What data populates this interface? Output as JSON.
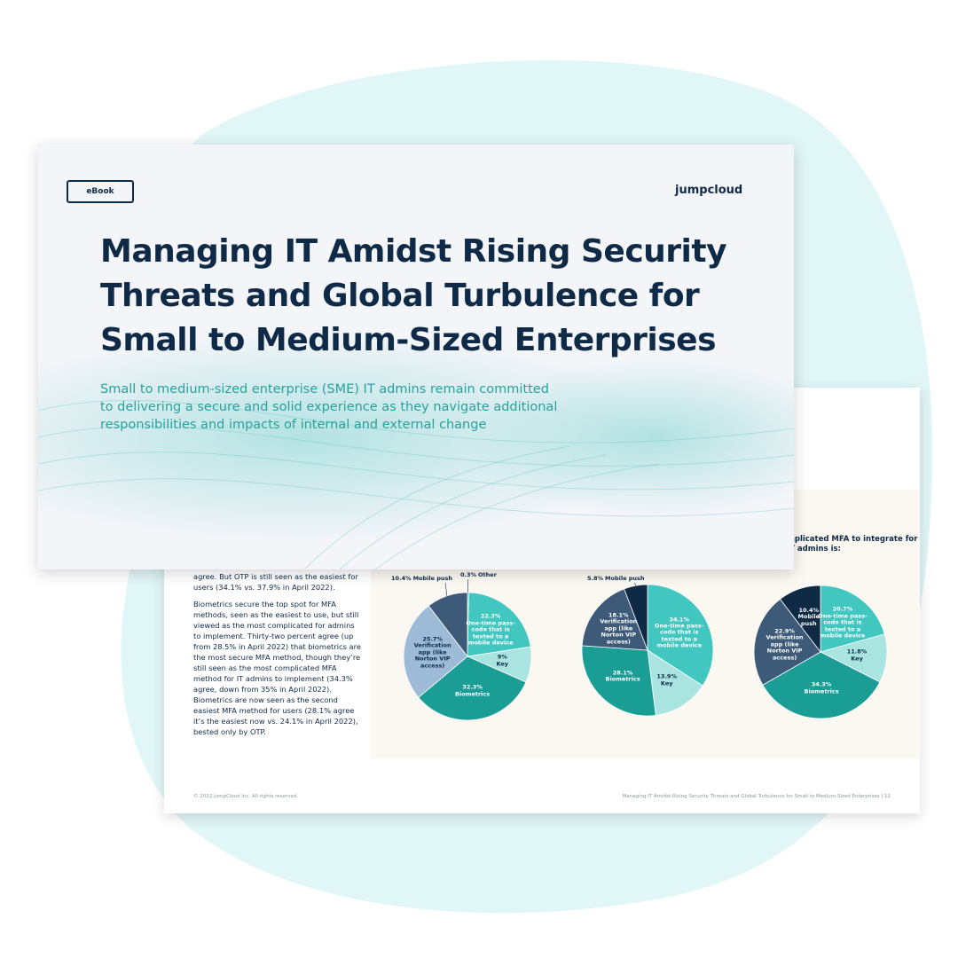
{
  "cover": {
    "badge": "eBook",
    "logo": "jumpcloud",
    "title": "Managing IT Amidst Rising Security Threats and Global Turbulence for Small to Medium-Sized Enterprises",
    "subtitle": "Small to medium-sized enterprise (SME) IT admins remain committed to delivering a secure and solid experience as they navigate additional responsibilities and impacts of internal and external change"
  },
  "page": {
    "heading_fragment": "mplicated MFA to integrate for IT admins is:",
    "body": [
      "agree. But OTP is still seen as the easiest for users (34.1% vs. 37.9% in April 2022).",
      "Biometrics secure the top spot for MFA methods, seen as the easiest to use, but still viewed as the most complicated for admins to implement. Thirty-two percent agree (up from 28.5% in April 2022) that biometrics are the most secure MFA method, though they’re still seen as the most complicated MFA method for IT admins to implement (34.3% agree, down from 35% in April 2022). Biometrics are now seen as the second easiest MFA method for users (28.1% agree it’s the easiest now vs. 24.1% in April 2022), bested only by OTP."
    ],
    "footer_left": "© 2022 JumpCloud Inc. All rights reserved.",
    "footer_right": "Managing IT Amidst Rising Security Threats and Global Turbulence for Small to Medium-Sized Enterprises | 12"
  },
  "pies": [
    {
      "type": "pie",
      "categories": [
        "Other",
        "One-time pass-code that is texted to a mobile device",
        "Key",
        "Biometrics",
        "Verification app (like Norton VIP access)",
        "Mobile push"
      ],
      "values": [
        0.3,
        22.3,
        9,
        32.3,
        25.7,
        10.4
      ],
      "value_labels": [
        "0.3%",
        "22.3%",
        "9%",
        "32.3%",
        "25.7%",
        "10.4%"
      ],
      "colors": [
        "#2b4a66",
        "#42c7c0",
        "#a9e4e0",
        "#1a9d95",
        "#9dbbd6",
        "#3d5a78"
      ]
    },
    {
      "type": "pie",
      "categories": [
        "One-time pass-code that is texted to a mobile device",
        "Key",
        "Biometrics",
        "Verification app (like Norton VIP access)",
        "Mobile push"
      ],
      "values": [
        34.1,
        13.9,
        28.1,
        18.1,
        5.8
      ],
      "value_labels": [
        "34.1%",
        "13.9%",
        "28.1%",
        "18.1%",
        "5.8%"
      ],
      "colors": [
        "#42c7c0",
        "#a9e4e0",
        "#1a9d95",
        "#3d5a78",
        "#0f2a44"
      ]
    },
    {
      "type": "pie",
      "categories": [
        "One-time pass-code that is texted to a mobile device",
        "Key",
        "Biometrics",
        "Verification app (like Norton VIP access)",
        "Mobile push"
      ],
      "values": [
        20.7,
        11.8,
        34.3,
        22.9,
        10.4
      ],
      "value_labels": [
        "20.7%",
        "11.8%",
        "34.3%",
        "22.9%",
        "10.4%"
      ],
      "colors": [
        "#42c7c0",
        "#a9e4e0",
        "#1a9d95",
        "#3d5a78",
        "#0f2a44"
      ]
    }
  ]
}
